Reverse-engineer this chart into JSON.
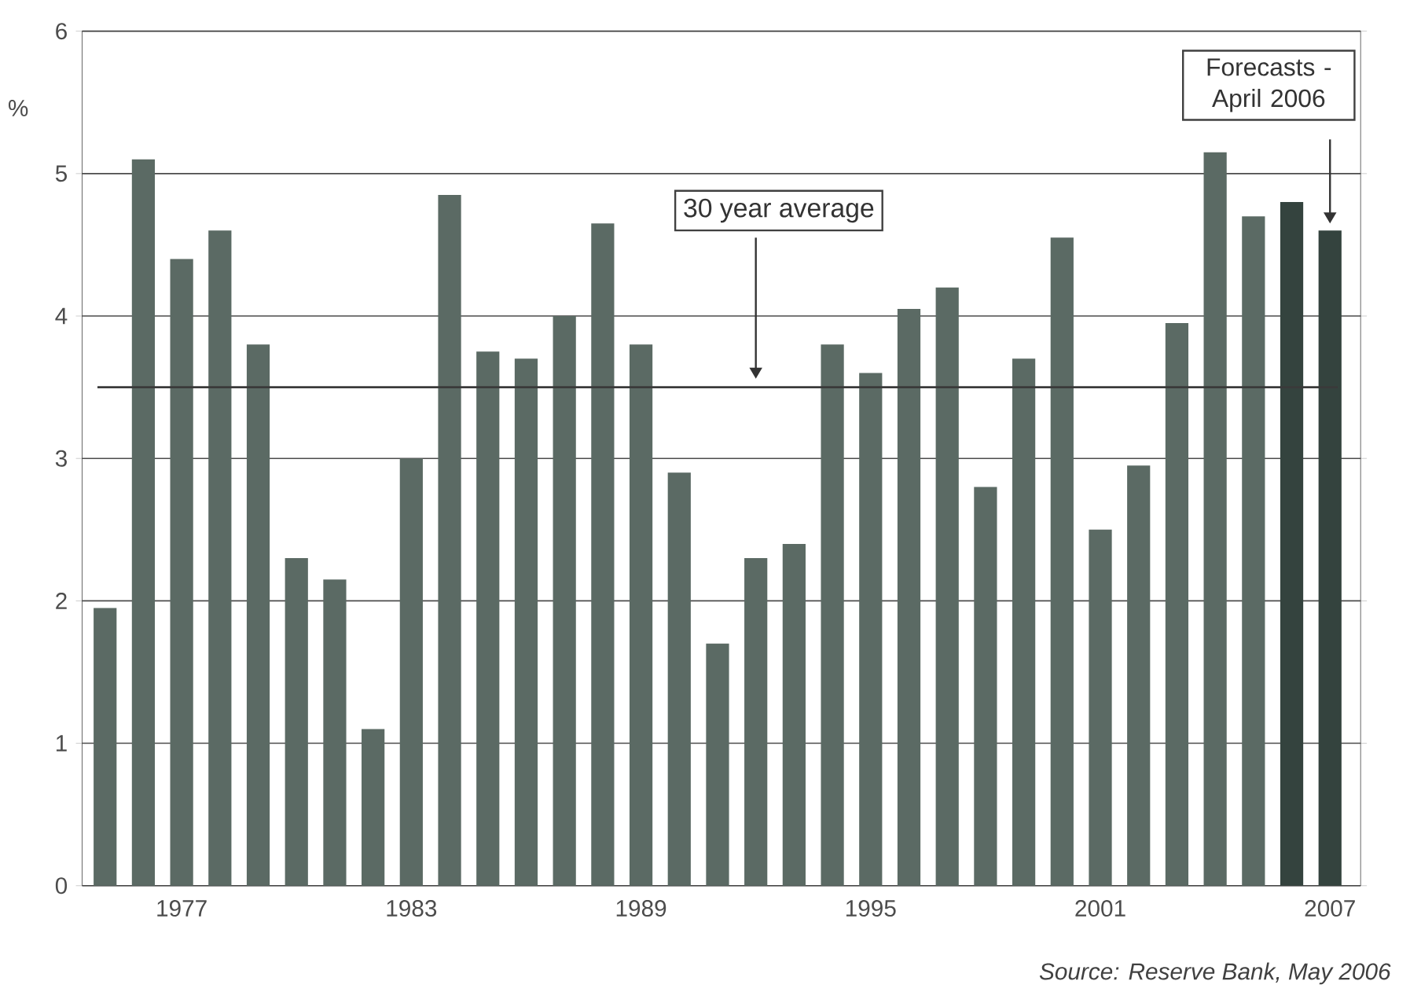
{
  "chart_data": {
    "type": "bar",
    "ylabel": "%",
    "categories": [
      null,
      null,
      "1977",
      null,
      null,
      null,
      null,
      null,
      "1983",
      null,
      null,
      null,
      null,
      null,
      "1989",
      null,
      null,
      null,
      null,
      null,
      "1995",
      null,
      null,
      null,
      null,
      null,
      "2001",
      null,
      null,
      null,
      null,
      null,
      "2007"
    ],
    "values": [
      1.95,
      5.1,
      4.4,
      4.6,
      3.8,
      2.3,
      2.15,
      1.1,
      3.0,
      4.85,
      3.75,
      3.7,
      4.0,
      4.65,
      3.8,
      2.9,
      1.7,
      2.3,
      2.4,
      3.8,
      3.6,
      4.05,
      4.2,
      2.8,
      3.7,
      4.55,
      2.5,
      2.95,
      3.95,
      5.15,
      4.7,
      4.8,
      4.6
    ],
    "colors": [
      "#5b6a64",
      "#5b6a64",
      "#5b6a64",
      "#5b6a64",
      "#5b6a64",
      "#5b6a64",
      "#5b6a64",
      "#5b6a64",
      "#5b6a64",
      "#5b6a64",
      "#5b6a64",
      "#5b6a64",
      "#5b6a64",
      "#5b6a64",
      "#5b6a64",
      "#5b6a64",
      "#5b6a64",
      "#5b6a64",
      "#5b6a64",
      "#5b6a64",
      "#5b6a64",
      "#5b6a64",
      "#5b6a64",
      "#5b6a64",
      "#5b6a64",
      "#5b6a64",
      "#5b6a64",
      "#5b6a64",
      "#5b6a64",
      "#5b6a64",
      "#5b6a64",
      "#34433e",
      "#34433e"
    ],
    "ylim": [
      0,
      6
    ],
    "yticks": [
      0,
      1,
      2,
      3,
      4,
      5,
      6
    ],
    "grid": "y",
    "ref_lines": [
      {
        "axis": "y",
        "value": 3.5,
        "label": "30 year average",
        "color": "#3a3a3a"
      }
    ],
    "annotations": [
      "Forecasts - April 2006",
      "Source: Reserve Bank, May 2006"
    ]
  }
}
